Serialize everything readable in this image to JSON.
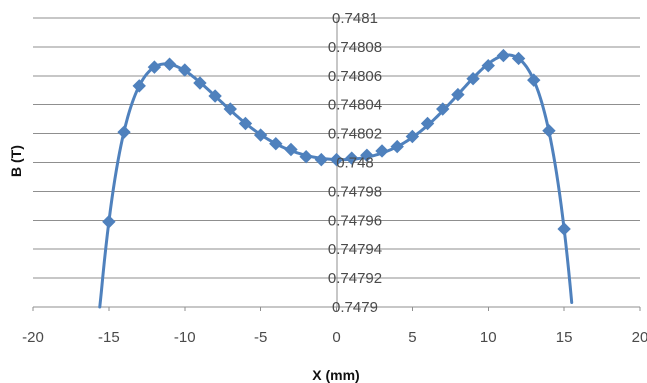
{
  "chart_data": {
    "type": "scatter",
    "title": "",
    "xlabel": "X (mm)",
    "ylabel": "B (T)",
    "xlim": [
      -20,
      20
    ],
    "ylim": [
      0.7479,
      0.7481
    ],
    "x_ticks": [
      -20,
      -15,
      -10,
      -5,
      0,
      5,
      10,
      15,
      20
    ],
    "x_tick_labels": [
      "-20",
      "-15",
      "-10",
      "-5",
      "0",
      "5",
      "10",
      "15",
      "20"
    ],
    "y_ticks": [
      0.7479,
      0.74792,
      0.74794,
      0.74796,
      0.74798,
      0.748,
      0.74802,
      0.74804,
      0.74806,
      0.74808,
      0.7481
    ],
    "y_tick_labels": [
      "0.7479",
      "0.74792",
      "0.74794",
      "0.74796",
      "0.74798",
      "0.748",
      "0.74802",
      "0.74804",
      "0.74806",
      "0.74808",
      "0.7481"
    ],
    "grid": true,
    "legend": "none",
    "colors": {
      "series": "#4f81bd",
      "grid": "#8f8f8f",
      "tick_text": "#4a4a4a",
      "axis_label": "#111111"
    },
    "series": [
      {
        "x": [
          -15,
          -14,
          -13,
          -12,
          -11,
          -10,
          -9,
          -8,
          -7,
          -6,
          -5,
          -4,
          -3,
          -2,
          -1,
          0,
          1,
          2,
          3,
          4,
          5,
          6,
          7,
          8,
          9,
          10,
          11,
          12,
          13,
          14,
          15
        ],
        "y": [
          0.747959,
          0.748021,
          0.748053,
          0.748066,
          0.748068,
          0.748064,
          0.748055,
          0.748046,
          0.748037,
          0.748027,
          0.748019,
          0.748013,
          0.748009,
          0.748004,
          0.748002,
          0.748002,
          0.748003,
          0.748005,
          0.748008,
          0.748011,
          0.748018,
          0.748027,
          0.748037,
          0.748047,
          0.748058,
          0.748067,
          0.748074,
          0.748072,
          0.748057,
          0.748022,
          0.747954
        ],
        "marker": "diamond",
        "smooth": true
      }
    ]
  }
}
